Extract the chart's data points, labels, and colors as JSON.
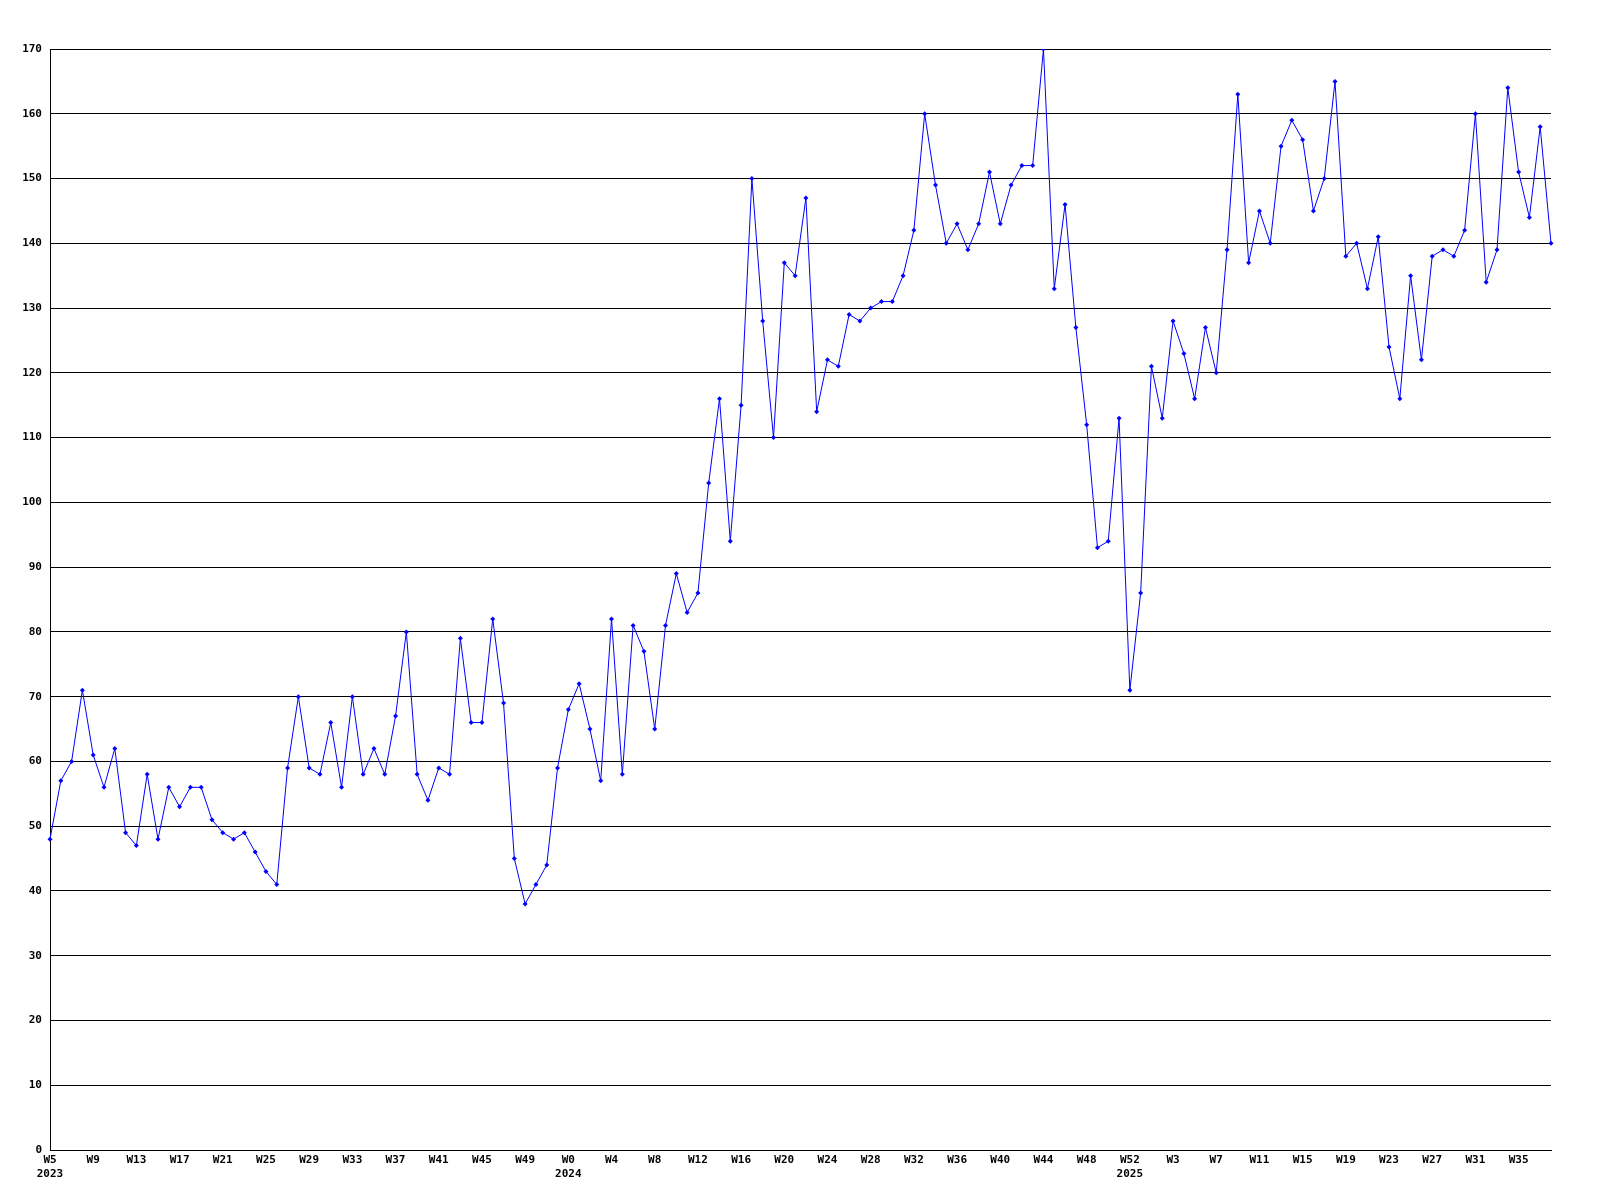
{
  "chart_data": {
    "type": "line",
    "categories": [
      "W5\n2023",
      null,
      null,
      null,
      "W9",
      null,
      null,
      null,
      "W13",
      null,
      null,
      null,
      "W17",
      null,
      null,
      null,
      "W21",
      null,
      null,
      null,
      "W25",
      null,
      null,
      null,
      "W29",
      null,
      null,
      null,
      "W33",
      null,
      null,
      null,
      "W37",
      null,
      null,
      null,
      "W41",
      null,
      null,
      null,
      "W45",
      null,
      null,
      null,
      "W49",
      null,
      null,
      null,
      "W0\n2024",
      null,
      null,
      null,
      "W4",
      null,
      null,
      null,
      "W8",
      null,
      null,
      null,
      "W12",
      null,
      null,
      null,
      "W16",
      null,
      null,
      null,
      "W20",
      null,
      null,
      null,
      "W24",
      null,
      null,
      null,
      "W28",
      null,
      null,
      null,
      "W32",
      null,
      null,
      null,
      "W36",
      null,
      null,
      null,
      "W40",
      null,
      null,
      null,
      "W44",
      null,
      null,
      null,
      "W48",
      null,
      null,
      null,
      "W52\n2025",
      null,
      null,
      null,
      "W3",
      null,
      null,
      null,
      "W7",
      null,
      null,
      null,
      "W11",
      null,
      null,
      null,
      "W15",
      null,
      null,
      null,
      "W19",
      null,
      null,
      null,
      "W23",
      null,
      null,
      null,
      "W27",
      null,
      null,
      null,
      "W31",
      null,
      null,
      null,
      "W35",
      null,
      null,
      null
    ],
    "series": [
      {
        "color": "#0000ff",
        "values": [
          48,
          57,
          60,
          71,
          61,
          56,
          62,
          49,
          47,
          58,
          48,
          56,
          53,
          56,
          56,
          51,
          49,
          48,
          49,
          46,
          43,
          41,
          59,
          70,
          59,
          58,
          66,
          56,
          70,
          58,
          62,
          58,
          67,
          80,
          58,
          54,
          59,
          58,
          79,
          66,
          66,
          82,
          69,
          45,
          38,
          41,
          44,
          59,
          68,
          72,
          65,
          57,
          82,
          58,
          81,
          77,
          65,
          81,
          89,
          83,
          86,
          103,
          116,
          94,
          115,
          150,
          128,
          110,
          137,
          135,
          147,
          114,
          122,
          121,
          129,
          128,
          130,
          131,
          131,
          135,
          142,
          160,
          149,
          140,
          143,
          139,
          143,
          151,
          143,
          149,
          152,
          152,
          170,
          133,
          146,
          127,
          112,
          93,
          94,
          113,
          71,
          86,
          121,
          113,
          128,
          123,
          116,
          127,
          120,
          139,
          163,
          137,
          145,
          140,
          155,
          159,
          156,
          145,
          150,
          165,
          138,
          140,
          133,
          141,
          124,
          116,
          135,
          122,
          138,
          139,
          138,
          142,
          160,
          134,
          139,
          164,
          151,
          144,
          158,
          140
        ]
      }
    ],
    "ylim": [
      0,
      170
    ],
    "yticks": [
      0,
      10,
      20,
      30,
      40,
      50,
      60,
      70,
      80,
      90,
      100,
      110,
      120,
      130,
      140,
      150,
      160,
      170
    ],
    "grid": "y",
    "legend": false,
    "marker": "diamond",
    "line_style": "solid"
  }
}
